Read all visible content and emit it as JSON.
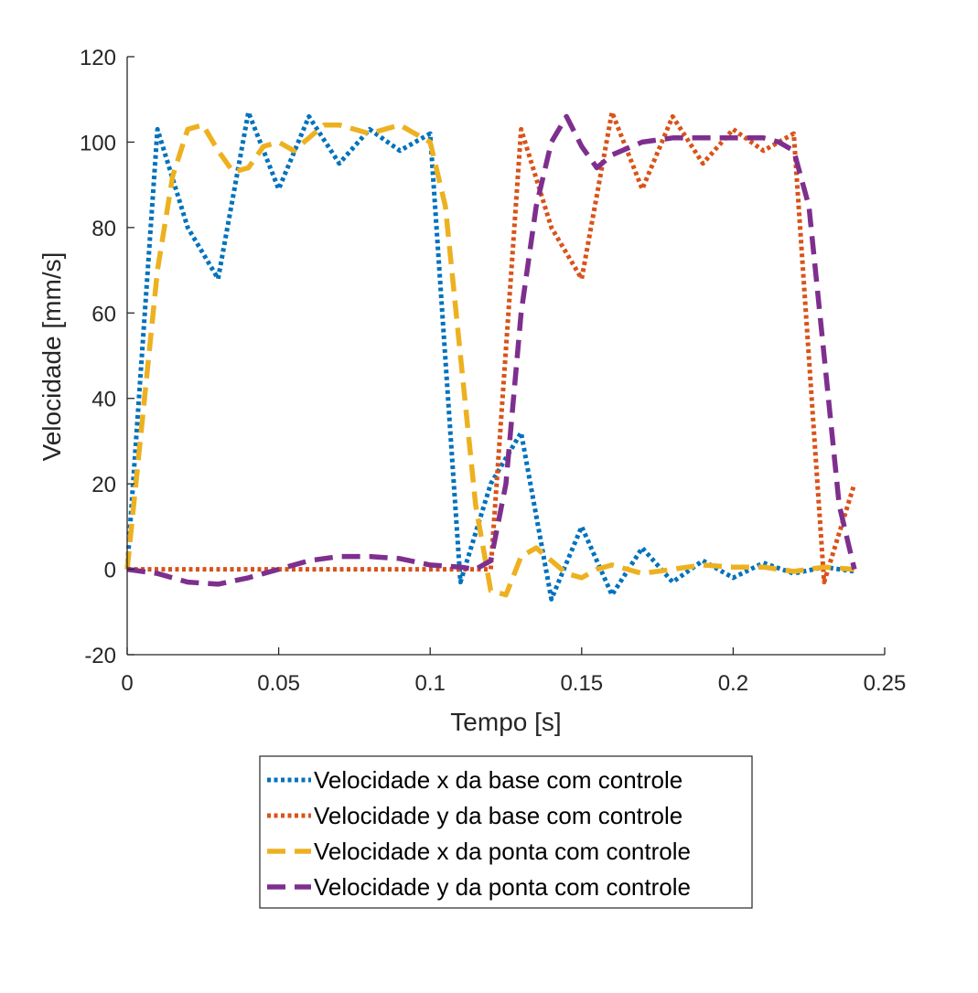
{
  "chart_data": {
    "type": "line",
    "title": "",
    "xlabel": "Tempo [s]",
    "ylabel": "Velocidade [mm/s]",
    "xlim": [
      0,
      0.25
    ],
    "ylim": [
      -20,
      120
    ],
    "xticks": [
      0,
      0.05,
      0.1,
      0.15,
      0.2,
      0.25
    ],
    "xtick_labels": [
      "0",
      "0.05",
      "0.1",
      "0.15",
      "0.2",
      "0.25"
    ],
    "yticks": [
      -20,
      0,
      20,
      40,
      60,
      80,
      100,
      120
    ],
    "ytick_labels": [
      "-20",
      "0",
      "20",
      "40",
      "60",
      "80",
      "100",
      "120"
    ],
    "grid": false,
    "legend_position": "bottom-outside",
    "series": [
      {
        "name": "Velocidade x da base com controle",
        "color": "#0072BD",
        "style": "dotted",
        "x": [
          0,
          0.01,
          0.02,
          0.03,
          0.04,
          0.05,
          0.06,
          0.07,
          0.08,
          0.09,
          0.1,
          0.11,
          0.12,
          0.13,
          0.14,
          0.15,
          0.16,
          0.17,
          0.18,
          0.19,
          0.2,
          0.21,
          0.22,
          0.23,
          0.24
        ],
        "y": [
          0,
          103,
          80,
          68,
          107,
          89,
          106,
          95,
          103,
          98,
          102,
          -3,
          20,
          32,
          -7,
          10,
          -6,
          5,
          -3,
          2,
          -2,
          1.5,
          -1,
          0.5,
          -0.5
        ]
      },
      {
        "name": "Velocidade y da base com controle",
        "color": "#D95319",
        "style": "dotted",
        "x": [
          0,
          0.01,
          0.02,
          0.03,
          0.04,
          0.05,
          0.06,
          0.07,
          0.08,
          0.09,
          0.1,
          0.11,
          0.12,
          0.13,
          0.14,
          0.15,
          0.16,
          0.17,
          0.18,
          0.19,
          0.2,
          0.21,
          0.22,
          0.23,
          0.24
        ],
        "y": [
          0,
          0,
          0,
          0,
          0,
          0,
          0,
          0,
          0,
          0,
          0,
          0,
          0,
          103,
          80,
          68,
          107,
          89,
          106,
          95,
          103,
          98,
          102,
          -3,
          20
        ]
      },
      {
        "name": "Velocidade x da ponta com controle",
        "color": "#EDB120",
        "style": "dashed",
        "x": [
          0,
          0.005,
          0.01,
          0.015,
          0.02,
          0.025,
          0.03,
          0.035,
          0.04,
          0.045,
          0.05,
          0.055,
          0.06,
          0.065,
          0.07,
          0.075,
          0.08,
          0.085,
          0.09,
          0.095,
          0.1,
          0.105,
          0.11,
          0.115,
          0.12,
          0.125,
          0.13,
          0.135,
          0.14,
          0.145,
          0.15,
          0.155,
          0.16,
          0.17,
          0.18,
          0.19,
          0.2,
          0.21,
          0.22,
          0.23,
          0.24
        ],
        "y": [
          0,
          35,
          70,
          92,
          103,
          104,
          98,
          93,
          94,
          99,
          100,
          98,
          101,
          104,
          104,
          103,
          102,
          103,
          104,
          102,
          100,
          85,
          50,
          15,
          -5,
          -6,
          3,
          5,
          2,
          -1,
          -2,
          0,
          1,
          -1,
          0,
          1,
          0.5,
          0.5,
          -0.5,
          0.5,
          0
        ]
      },
      {
        "name": "Velocidade y da ponta com controle",
        "color": "#7E2F8E",
        "style": "dashed",
        "x": [
          0,
          0.01,
          0.02,
          0.03,
          0.04,
          0.05,
          0.06,
          0.07,
          0.08,
          0.09,
          0.1,
          0.11,
          0.115,
          0.12,
          0.125,
          0.13,
          0.135,
          0.14,
          0.145,
          0.15,
          0.155,
          0.16,
          0.17,
          0.18,
          0.19,
          0.2,
          0.21,
          0.215,
          0.22,
          0.225,
          0.23,
          0.235,
          0.24
        ],
        "y": [
          0,
          -1,
          -3,
          -3.5,
          -2,
          0,
          2,
          3,
          3,
          2.5,
          1,
          0.5,
          0,
          2,
          20,
          60,
          85,
          100,
          106,
          99,
          94,
          97,
          100,
          101,
          101,
          101,
          101,
          100,
          98,
          85,
          50,
          15,
          0
        ]
      }
    ]
  }
}
